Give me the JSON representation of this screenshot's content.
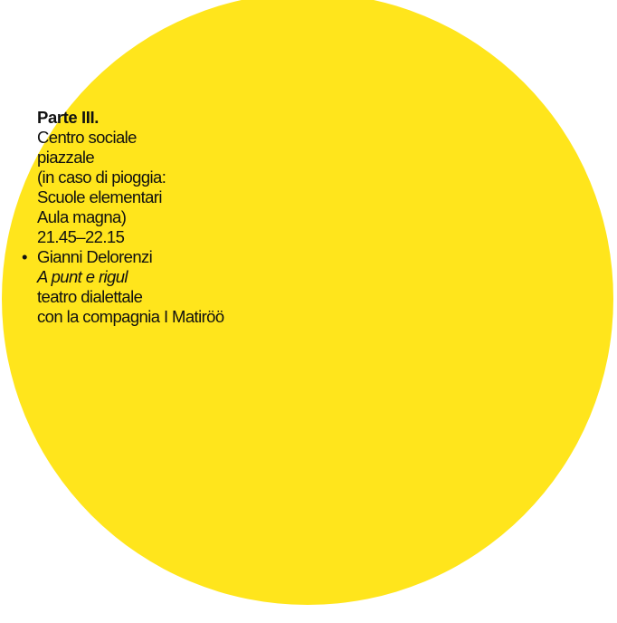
{
  "colors": {
    "background": "#ffffff",
    "circle": "#ffe51c",
    "text": "#111111"
  },
  "heading": "Parte III.",
  "location_lines": [
    "Centro sociale",
    "piazzale",
    "(in caso di pioggia:",
    "Scuole elementari",
    "Aula magna)"
  ],
  "time": "21.45–22.15",
  "event": {
    "bullet": "•",
    "author": "Gianni Delorenzi",
    "title": "A punt e rigul",
    "type": "teatro dialettale",
    "company": "con la compagnia I Matiröö"
  }
}
